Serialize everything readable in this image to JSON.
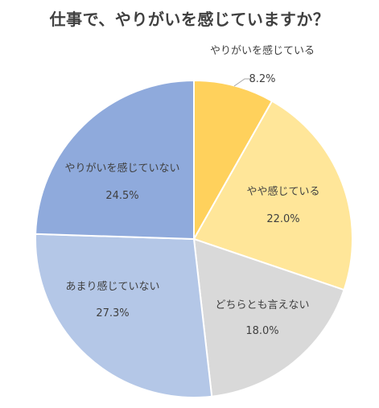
{
  "chart_data": {
    "type": "pie",
    "title": "仕事で、やりがいを感じていますか？",
    "slices": [
      {
        "label": "やりがいを感じている",
        "value": 8.2,
        "value_label": "8.2%",
        "color": "#ffd15c"
      },
      {
        "label": "やや感じている",
        "value": 22.0,
        "value_label": "22.0%",
        "color": "#ffe699"
      },
      {
        "label": "どちらとも言えない",
        "value": 18.0,
        "value_label": "18.0%",
        "color": "#d9d9d9"
      },
      {
        "label": "あまり感じていない",
        "value": 27.3,
        "value_label": "27.3%",
        "color": "#b4c7e7"
      },
      {
        "label": "やりがいを感じていない",
        "value": 24.5,
        "value_label": "24.5%",
        "color": "#8faadc"
      }
    ],
    "start_angle": "12 o'clock",
    "direction": "clockwise",
    "legend": "none",
    "slice_separator_color": "#ffffff"
  }
}
